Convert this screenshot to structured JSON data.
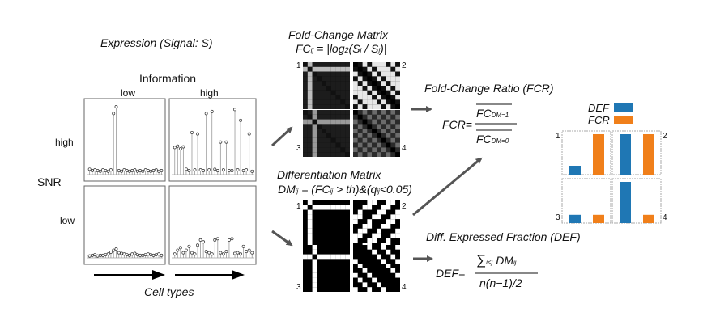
{
  "expression": {
    "title": "Expression (Signal: S)",
    "info_axis": "Information",
    "info_low": "low",
    "info_high": "high",
    "snr_axis": "SNR",
    "snr_high": "high",
    "snr_low": "low",
    "celltypes": "Cell types"
  },
  "panels": {
    "p1": "1",
    "p2": "2",
    "p3": "3",
    "p4": "4"
  },
  "fc": {
    "title": "Fold-Change Matrix",
    "formula": "FCij = |log2(Si / Sj)|"
  },
  "dm": {
    "title": "Differentiation Matrix",
    "formula": "DMij = (FCij > th)&(qij<0.05)"
  },
  "fcr": {
    "title": "Fold-Change Ratio (FCR)",
    "lhs": "FCR=",
    "num": "FCDM=1",
    "den": "FCDM=0"
  },
  "def": {
    "title": "Diff. Expressed Fraction (DEF)",
    "lhs": "DEF=",
    "sum": "∑i<j DMij",
    "den": "n(n−1)/2"
  },
  "legend": {
    "def_label": "DEF",
    "fcr_label": "FCR",
    "def_color": "#1f77b4",
    "fcr_color": "#f07f1a"
  },
  "bars": {
    "p1": {
      "def": 0.22,
      "fcr": 1.0
    },
    "p2": {
      "def": 1.0,
      "fcr": 1.0
    },
    "p3": {
      "def": 0.2,
      "fcr": 0.2
    },
    "p4": {
      "def": 1.0,
      "fcr": 0.2
    }
  },
  "expression_profiles": {
    "p1": [
      0.08,
      0.06,
      0.07,
      0.06,
      0.05,
      0.07,
      0.06,
      0.05,
      0.07,
      0.9,
      1.0,
      0.06,
      0.05,
      0.07,
      0.06,
      0.05,
      0.06,
      0.07,
      0.05,
      0.06,
      0.05,
      0.07,
      0.06,
      0.05,
      0.06,
      0.07,
      0.05,
      0.06
    ],
    "p2": [
      0.4,
      0.42,
      0.38,
      0.41,
      0.08,
      0.06,
      0.62,
      0.07,
      0.6,
      0.07,
      0.06,
      0.9,
      0.07,
      0.93,
      0.08,
      0.06,
      0.48,
      0.07,
      0.48,
      0.06,
      0.06,
      0.96,
      0.07,
      0.8,
      0.06,
      0.07,
      0.6,
      0.05
    ],
    "p3": [
      0.03,
      0.04,
      0.05,
      0.03,
      0.04,
      0.04,
      0.05,
      0.06,
      0.09,
      0.12,
      0.14,
      0.08,
      0.07,
      0.06,
      0.05,
      0.04,
      0.06,
      0.07,
      0.05,
      0.04,
      0.04,
      0.05,
      0.06,
      0.05,
      0.04,
      0.05,
      0.06,
      0.04
    ],
    "p4": [
      0.06,
      0.12,
      0.16,
      0.08,
      0.12,
      0.18,
      0.08,
      0.06,
      0.2,
      0.28,
      0.25,
      0.1,
      0.08,
      0.06,
      0.28,
      0.3,
      0.08,
      0.06,
      0.1,
      0.28,
      0.3,
      0.07,
      0.08,
      0.06,
      0.18,
      0.1,
      0.12,
      0.08
    ]
  }
}
